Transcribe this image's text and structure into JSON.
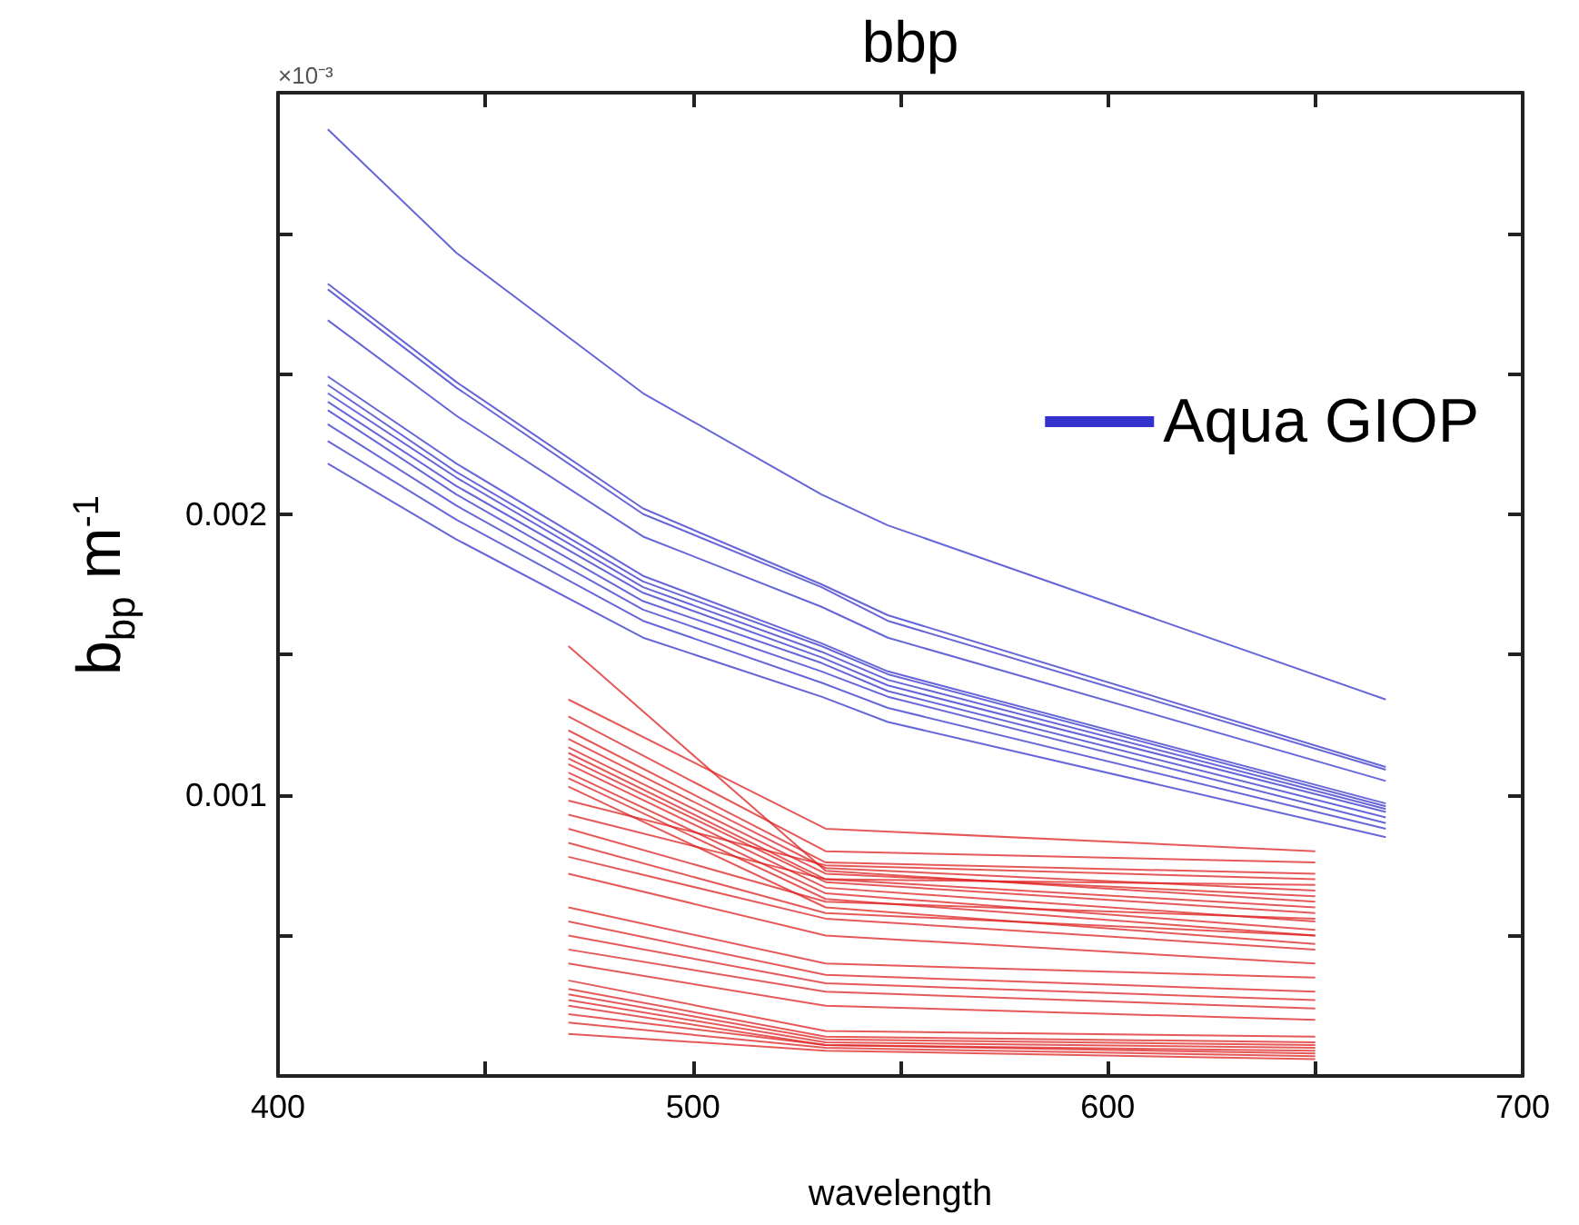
{
  "chart_data": {
    "type": "line",
    "title": "bbp",
    "xlabel": "wavelength",
    "ylabel": "b$_{bp}$ m$^{-1}$",
    "annotations": [
      "×10⁻³"
    ],
    "xlim": [
      400,
      700
    ],
    "xticks": [
      400,
      {
        "value": 450,
        "label": null
      },
      500,
      {
        "value": 550,
        "label": null
      },
      600,
      {
        "value": 650,
        "label": null
      },
      700
    ],
    "ylim": [
      0,
      0.0035
    ],
    "yticks": [
      {
        "value": 0.0005,
        "label": null
      },
      0.001,
      {
        "value": 0.0015,
        "label": null
      },
      0.002,
      {
        "value": 0.0025,
        "label": null
      },
      {
        "value": 0.003,
        "label": null
      }
    ],
    "grid": false,
    "legend": "top right",
    "series": [
      {
        "name": "Aqua GIOP",
        "color": "#3333cc",
        "x": [
          412,
          443,
          488,
          531,
          547,
          667
        ],
        "values": [
          0.00243,
          0.00213,
          0.00174,
          0.00151,
          0.00141,
          0.00095
        ]
      },
      {
        "color": "#3333cc",
        "x": [
          412,
          443,
          488,
          531,
          547,
          667
        ],
        "values": [
          0.00337,
          0.00293,
          0.00243,
          0.00207,
          0.00196,
          0.00134
        ]
      },
      {
        "color": "#3333cc",
        "x": [
          412,
          443,
          488,
          531,
          547,
          667
        ],
        "values": [
          0.00282,
          0.00247,
          0.00202,
          0.00175,
          0.00164,
          0.0011
        ]
      },
      {
        "color": "#3333cc",
        "x": [
          412,
          443,
          488,
          531,
          547,
          667
        ],
        "values": [
          0.0028,
          0.00245,
          0.002,
          0.00174,
          0.00162,
          0.00109
        ]
      },
      {
        "color": "#3333cc",
        "x": [
          412,
          443,
          488,
          531,
          547,
          667
        ],
        "values": [
          0.00269,
          0.00235,
          0.00192,
          0.00167,
          0.00156,
          0.00105
        ]
      },
      {
        "color": "#3333cc",
        "x": [
          412,
          443,
          488,
          531,
          547,
          667
        ],
        "values": [
          0.00249,
          0.00218,
          0.00178,
          0.00154,
          0.00144,
          0.00097
        ]
      },
      {
        "color": "#3333cc",
        "x": [
          412,
          443,
          488,
          531,
          547,
          667
        ],
        "values": [
          0.00246,
          0.00215,
          0.00176,
          0.00153,
          0.00143,
          0.00096
        ]
      },
      {
        "color": "#3333cc",
        "x": [
          412,
          443,
          488,
          531,
          547,
          667
        ],
        "values": [
          0.0024,
          0.0021,
          0.00172,
          0.00149,
          0.00139,
          0.00094
        ]
      },
      {
        "color": "#3333cc",
        "x": [
          412,
          443,
          488,
          531,
          547,
          667
        ],
        "values": [
          0.00237,
          0.00207,
          0.00169,
          0.00147,
          0.00137,
          0.00092
        ]
      },
      {
        "color": "#3333cc",
        "x": [
          412,
          443,
          488,
          531,
          547,
          667
        ],
        "values": [
          0.00232,
          0.00203,
          0.00166,
          0.00144,
          0.00135,
          0.0009
        ]
      },
      {
        "color": "#3333cc",
        "x": [
          412,
          443,
          488,
          531,
          547,
          667
        ],
        "values": [
          0.00226,
          0.00198,
          0.00162,
          0.0014,
          0.00131,
          0.00088
        ]
      },
      {
        "color": "#3333cc",
        "x": [
          412,
          443,
          488,
          531,
          547,
          667
        ],
        "values": [
          0.00218,
          0.00191,
          0.00156,
          0.00135,
          0.00126,
          0.00085
        ]
      },
      {
        "color": "#dd2222",
        "x": [
          470,
          532,
          650
        ],
        "values": [
          0.00153,
          0.00073,
          0.00062
        ]
      },
      {
        "color": "#dd2222",
        "x": [
          470,
          532,
          650
        ],
        "values": [
          0.00134,
          0.00088,
          0.0008
        ]
      },
      {
        "color": "#dd2222",
        "x": [
          470,
          532,
          650
        ],
        "values": [
          0.00128,
          0.0008,
          0.00076
        ]
      },
      {
        "color": "#dd2222",
        "x": [
          470,
          532,
          650
        ],
        "values": [
          0.00123,
          0.00076,
          0.00072
        ]
      },
      {
        "color": "#dd2222",
        "x": [
          470,
          532,
          650
        ],
        "values": [
          0.0012,
          0.00074,
          0.00066
        ]
      },
      {
        "color": "#dd2222",
        "x": [
          470,
          532,
          650
        ],
        "values": [
          0.00117,
          0.00072,
          0.00064
        ]
      },
      {
        "color": "#dd2222",
        "x": [
          470,
          532,
          650
        ],
        "values": [
          0.00115,
          0.0007,
          0.0006
        ]
      },
      {
        "color": "#dd2222",
        "x": [
          470,
          532,
          650
        ],
        "values": [
          0.00113,
          0.00069,
          0.00058
        ]
      },
      {
        "color": "#dd2222",
        "x": [
          470,
          532,
          650
        ],
        "values": [
          0.00111,
          0.00067,
          0.00055
        ]
      },
      {
        "color": "#dd2222",
        "x": [
          470,
          532,
          650
        ],
        "values": [
          0.00108,
          0.00065,
          0.00052
        ]
      },
      {
        "color": "#dd2222",
        "x": [
          470,
          532,
          650
        ],
        "values": [
          0.00106,
          0.00063,
          0.0005
        ]
      },
      {
        "color": "#dd2222",
        "x": [
          470,
          532,
          650
        ],
        "values": [
          0.00103,
          0.0006,
          0.00047
        ]
      },
      {
        "color": "#dd2222",
        "x": [
          470,
          532,
          650
        ],
        "values": [
          0.00098,
          0.00075,
          0.0007
        ]
      },
      {
        "color": "#dd2222",
        "x": [
          470,
          532,
          650
        ],
        "values": [
          0.00093,
          0.0007,
          0.00068
        ]
      },
      {
        "color": "#dd2222",
        "x": [
          470,
          532,
          650
        ],
        "values": [
          0.00088,
          0.00062,
          0.00056
        ]
      },
      {
        "color": "#dd2222",
        "x": [
          470,
          532,
          650
        ],
        "values": [
          0.00083,
          0.00058,
          0.0005
        ]
      },
      {
        "color": "#dd2222",
        "x": [
          470,
          532,
          650
        ],
        "values": [
          0.00078,
          0.00056,
          0.00045
        ]
      },
      {
        "color": "#dd2222",
        "x": [
          470,
          532,
          650
        ],
        "values": [
          0.00072,
          0.0005,
          0.0004
        ]
      },
      {
        "color": "#dd2222",
        "x": [
          470,
          532,
          650
        ],
        "values": [
          0.0006,
          0.0004,
          0.00035
        ]
      },
      {
        "color": "#dd2222",
        "x": [
          470,
          532,
          650
        ],
        "values": [
          0.00055,
          0.00036,
          0.0003
        ]
      },
      {
        "color": "#dd2222",
        "x": [
          470,
          532,
          650
        ],
        "values": [
          0.0005,
          0.00033,
          0.00027
        ]
      },
      {
        "color": "#dd2222",
        "x": [
          470,
          532,
          650
        ],
        "values": [
          0.00045,
          0.0003,
          0.00024
        ]
      },
      {
        "color": "#dd2222",
        "x": [
          470,
          532,
          650
        ],
        "values": [
          0.0004,
          0.00025,
          0.0002
        ]
      },
      {
        "color": "#dd2222",
        "x": [
          470,
          532,
          650
        ],
        "values": [
          0.00034,
          0.00016,
          0.00014
        ]
      },
      {
        "color": "#dd2222",
        "x": [
          470,
          532,
          650
        ],
        "values": [
          0.00031,
          0.00014,
          0.00012
        ]
      },
      {
        "color": "#dd2222",
        "x": [
          470,
          532,
          650
        ],
        "values": [
          0.00029,
          0.00013,
          0.00011
        ]
      },
      {
        "color": "#dd2222",
        "x": [
          470,
          532,
          650
        ],
        "values": [
          0.00027,
          0.00012,
          0.0001
        ]
      },
      {
        "color": "#dd2222",
        "x": [
          470,
          532,
          650
        ],
        "values": [
          0.00025,
          0.00011,
          9e-05
        ]
      },
      {
        "color": "#dd2222",
        "x": [
          470,
          532,
          650
        ],
        "values": [
          0.00022,
          0.00011,
          8e-05
        ]
      },
      {
        "color": "#dd2222",
        "x": [
          470,
          532,
          650
        ],
        "values": [
          0.00019,
          0.0001,
          7e-05
        ]
      },
      {
        "color": "#dd2222",
        "x": [
          470,
          532,
          650
        ],
        "values": [
          0.00015,
          9e-05,
          6e-05
        ]
      }
    ]
  }
}
